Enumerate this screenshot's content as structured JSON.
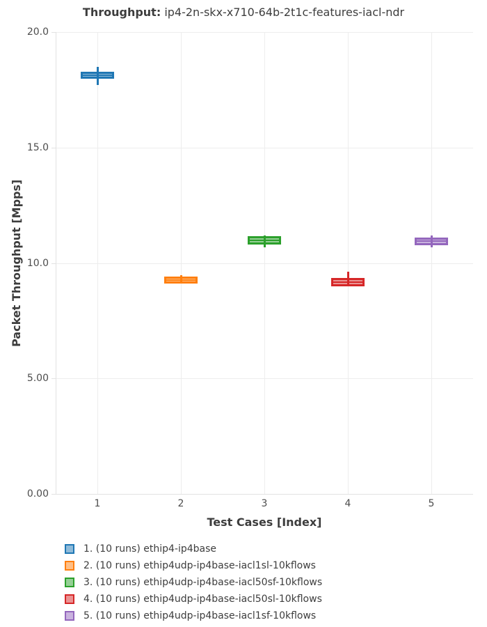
{
  "title": {
    "prefix": "Throughput:",
    "suffix": "ip4-2n-skx-x710-64b-2t1c-features-iacl-ndr"
  },
  "colors": {
    "text_dark": "#3d3d3d",
    "tick_text": "#4c4c4c",
    "gridline": "#ededed",
    "axis_line": "#e2e2e2",
    "background": "#ffffff"
  },
  "chart_data": {
    "type": "box",
    "title": "Throughput: ip4-2n-skx-x710-64b-2t1c-features-iacl-ndr",
    "xlabel": "Test Cases [Index]",
    "ylabel": "Packet Throughput [Mpps]",
    "ylim": [
      0,
      20
    ],
    "grid": true,
    "legend_position": "bottom-left",
    "yticks": [
      {
        "value": 0,
        "label": "0.00"
      },
      {
        "value": 5,
        "label": "5.00"
      },
      {
        "value": 10,
        "label": "10.0"
      },
      {
        "value": 15,
        "label": "15.0"
      },
      {
        "value": 20,
        "label": "20.0"
      }
    ],
    "xticks": [
      "1",
      "2",
      "3",
      "4",
      "5"
    ],
    "series": [
      {
        "x": 1,
        "label": "1. (10 runs) ethip4-ip4base",
        "runs": 10,
        "color": "#1f77b4",
        "min": 17.71,
        "q1": 17.97,
        "median": 18.13,
        "q3": 18.28,
        "max": 18.49
      },
      {
        "x": 2,
        "label": "2. (10 runs) ethip4udp-ip4base-iacl1sl-10kflows",
        "runs": 10,
        "color": "#ff7f0e",
        "min": 9.1,
        "q1": 9.12,
        "median": 9.26,
        "q3": 9.4,
        "max": 9.47
      },
      {
        "x": 3,
        "label": "3. (10 runs) ethip4udp-ip4base-iacl50sf-10kflows",
        "runs": 10,
        "color": "#2ca02c",
        "min": 10.68,
        "q1": 10.81,
        "median": 10.98,
        "q3": 11.15,
        "max": 11.18
      },
      {
        "x": 4,
        "label": "4. (10 runs) ethip4udp-ip4base-iacl50sl-10kflows",
        "runs": 10,
        "color": "#d62728",
        "min": 8.98,
        "q1": 9.0,
        "median": 9.18,
        "q3": 9.35,
        "max": 9.62
      },
      {
        "x": 5,
        "label": "5. (10 runs) ethip4udp-ip4base-iacl1sf-10kflows",
        "runs": 10,
        "color": "#9467bd",
        "min": 10.68,
        "q1": 10.77,
        "median": 10.95,
        "q3": 11.11,
        "max": 11.2
      }
    ]
  }
}
